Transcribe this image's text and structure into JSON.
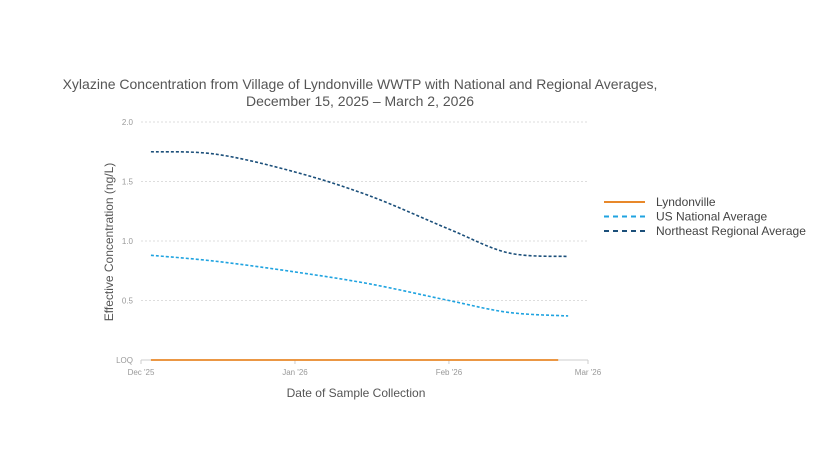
{
  "chart_data": {
    "type": "line",
    "title_line1": "Xylazine Concentration from Village of Lyndonville WWTP with National and Regional Averages,",
    "title_line2": "December 15, 2025 – March 2, 2026",
    "xlabel": "Date of Sample Collection",
    "ylabel": "Effective Concentration (ng/L)",
    "x_ticks": [
      "Dec '25",
      "Jan '26",
      "Feb '26",
      "Mar '26"
    ],
    "y_ticks": [
      "LOQ",
      "0.5",
      "1.0",
      "1.5",
      "2.0"
    ],
    "ylim": [
      0,
      2.0
    ],
    "xlim_days": [
      0,
      90
    ],
    "x_unit": "days since Dec 1, 2025",
    "series": [
      {
        "name": "Lyndonville",
        "color": "#e8882a",
        "style": "solid",
        "x": [
          2,
          84
        ],
        "y": [
          0,
          0
        ]
      },
      {
        "name": "US National Average",
        "color": "#1fa3e0",
        "style": "dashed",
        "x": [
          2,
          15,
          31,
          46,
          62,
          74,
          86
        ],
        "y": [
          0.88,
          0.83,
          0.74,
          0.64,
          0.5,
          0.4,
          0.37
        ]
      },
      {
        "name": "Northeast Regional Average",
        "color": "#1b4f7a",
        "style": "dashed",
        "x": [
          2,
          15,
          31,
          46,
          62,
          74,
          86
        ],
        "y": [
          1.75,
          1.73,
          1.58,
          1.38,
          1.1,
          0.9,
          0.87
        ]
      }
    ]
  }
}
